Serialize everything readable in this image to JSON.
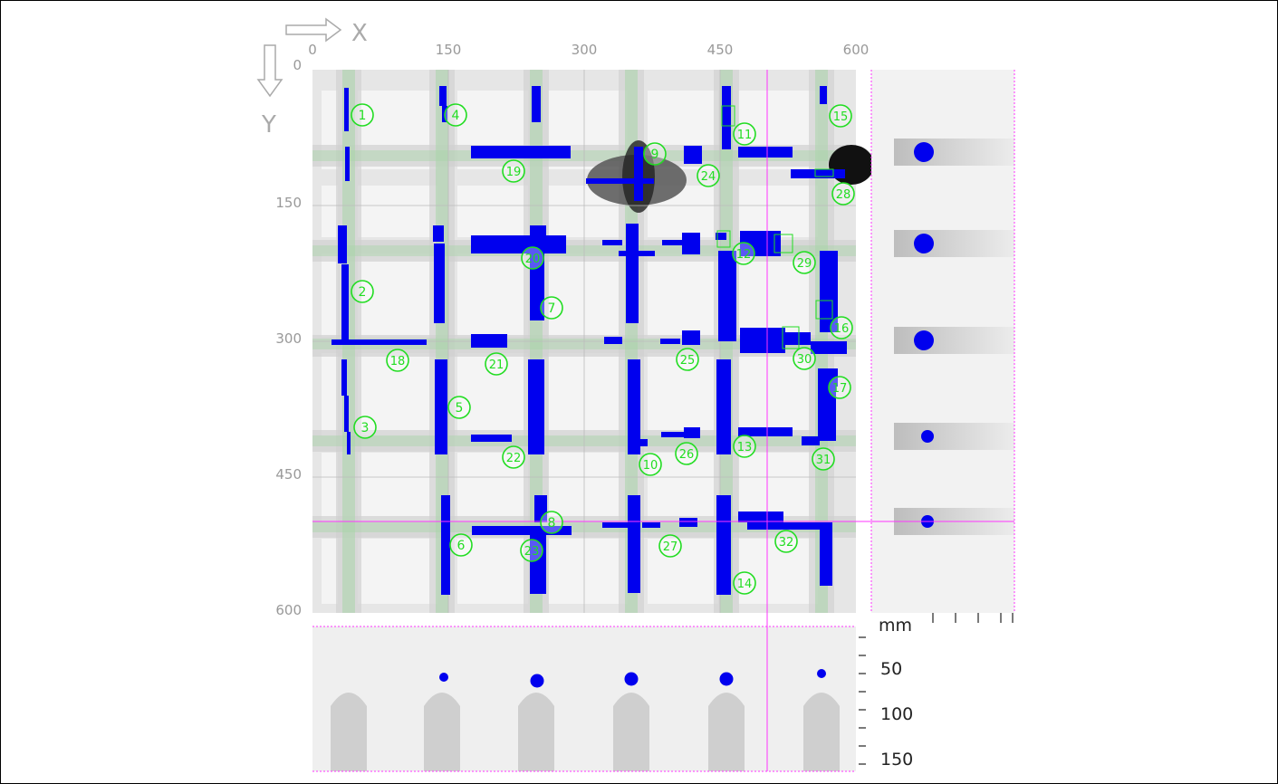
{
  "axes": {
    "x_label": "X",
    "y_label": "Y",
    "x_ticks": [
      "0",
      "150",
      "300",
      "450",
      "600"
    ],
    "y_ticks": [
      "0",
      "150",
      "300",
      "450",
      "600"
    ],
    "depth_unit": "mm",
    "depth_ticks": [
      "50",
      "100",
      "150"
    ]
  },
  "colors": {
    "rebar": "#0000ee",
    "marker": "#22dd22",
    "cursor": "#ff33ff"
  },
  "markers": [
    {
      "label": "1",
      "x": 55,
      "y": 50
    },
    {
      "label": "2",
      "x": 55,
      "y": 245
    },
    {
      "label": "3",
      "x": 58,
      "y": 395
    },
    {
      "label": "4",
      "x": 158,
      "y": 50
    },
    {
      "label": "5",
      "x": 162,
      "y": 373
    },
    {
      "label": "6",
      "x": 164,
      "y": 525
    },
    {
      "label": "7",
      "x": 264,
      "y": 263
    },
    {
      "label": "8",
      "x": 264,
      "y": 500
    },
    {
      "label": "9",
      "x": 378,
      "y": 93
    },
    {
      "label": "10",
      "x": 373,
      "y": 436
    },
    {
      "label": "11",
      "x": 477,
      "y": 71
    },
    {
      "label": "12",
      "x": 476,
      "y": 203
    },
    {
      "label": "13",
      "x": 477,
      "y": 416
    },
    {
      "label": "14",
      "x": 477,
      "y": 567
    },
    {
      "label": "15",
      "x": 583,
      "y": 51
    },
    {
      "label": "16",
      "x": 584,
      "y": 285
    },
    {
      "label": "17",
      "x": 582,
      "y": 351
    },
    {
      "label": "18",
      "x": 94,
      "y": 321
    },
    {
      "label": "19",
      "x": 222,
      "y": 112
    },
    {
      "label": "20",
      "x": 243,
      "y": 208
    },
    {
      "label": "21",
      "x": 203,
      "y": 325
    },
    {
      "label": "22",
      "x": 222,
      "y": 428
    },
    {
      "label": "23",
      "x": 242,
      "y": 531
    },
    {
      "label": "24",
      "x": 437,
      "y": 117
    },
    {
      "label": "25",
      "x": 414,
      "y": 320
    },
    {
      "label": "26",
      "x": 413,
      "y": 424
    },
    {
      "label": "27",
      "x": 395,
      "y": 526
    },
    {
      "label": "28",
      "x": 586,
      "y": 137
    },
    {
      "label": "29",
      "x": 543,
      "y": 213
    },
    {
      "label": "30",
      "x": 543,
      "y": 319
    },
    {
      "label": "31",
      "x": 564,
      "y": 430
    },
    {
      "label": "32",
      "x": 523,
      "y": 521
    }
  ],
  "side_bars": [
    {
      "y": 91,
      "depth": 58,
      "size": "large"
    },
    {
      "y": 192,
      "depth": 58,
      "size": "large"
    },
    {
      "y": 299,
      "depth": 58,
      "size": "large"
    },
    {
      "y": 405,
      "depth": 62,
      "size": "small"
    },
    {
      "y": 499,
      "depth": 62,
      "size": "small"
    }
  ],
  "bottom_bars": [
    {
      "x": 145,
      "depth": 56,
      "size": "small"
    },
    {
      "x": 248,
      "depth": 60,
      "size": "large"
    },
    {
      "x": 352,
      "depth": 58,
      "size": "large"
    },
    {
      "x": 457,
      "depth": 58,
      "size": "large"
    },
    {
      "x": 562,
      "depth": 52,
      "size": "small"
    }
  ],
  "cursor": {
    "x": 502,
    "y": 499
  }
}
